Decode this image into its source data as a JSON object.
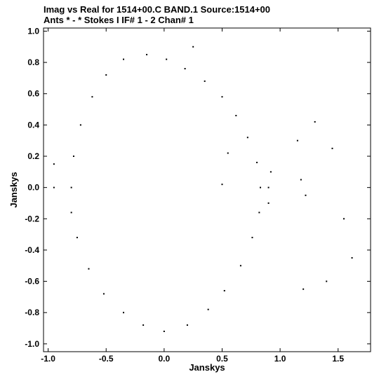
{
  "header": {
    "line1": "Imag vs Real for 1514+00.C BAND.1   Source:1514+00",
    "line2": "Ants * - *    Stokes I  IF# 1 - 2  Chan# 1"
  },
  "chart_data": {
    "type": "scatter",
    "title": "Imag vs Real for 1514+00.C BAND.1   Source:1514+00",
    "subtitle": "Ants * - *    Stokes I  IF# 1 - 2  Chan# 1",
    "xlabel": "Janskys",
    "ylabel": "Janskys",
    "xlim": [
      -1.04,
      1.78
    ],
    "ylim": [
      -1.05,
      1.02
    ],
    "x_ticks": [
      -1.0,
      -0.5,
      0.0,
      0.5,
      1.0,
      1.5
    ],
    "x_tick_labels": [
      "-1.0",
      "-0.5",
      "0.0",
      "0.5",
      "1.0",
      "1.5"
    ],
    "y_ticks": [
      -1.0,
      -0.8,
      -0.6,
      -0.4,
      -0.2,
      0.0,
      0.2,
      0.4,
      0.6,
      0.8,
      1.0
    ],
    "y_tick_labels": [
      "-1.0",
      "-0.8",
      "-0.6",
      "-0.4",
      "-0.2",
      "0.0",
      "0.2",
      "0.4",
      "0.6",
      "0.8",
      "1.0"
    ],
    "grid": false,
    "legend": false,
    "marker_color": "#000000",
    "series": [
      {
        "points": [
          [
            -0.8,
            0.0
          ],
          [
            -0.78,
            0.2
          ],
          [
            -0.72,
            0.4
          ],
          [
            -0.62,
            0.58
          ],
          [
            -0.5,
            0.72
          ],
          [
            -0.35,
            0.82
          ],
          [
            -0.15,
            0.85
          ],
          [
            0.02,
            0.82
          ],
          [
            0.18,
            0.76
          ],
          [
            0.35,
            0.68
          ],
          [
            0.5,
            0.58
          ],
          [
            0.62,
            0.46
          ],
          [
            0.72,
            0.32
          ],
          [
            0.8,
            0.16
          ],
          [
            0.83,
            0.0
          ],
          [
            0.82,
            -0.16
          ],
          [
            0.76,
            -0.32
          ],
          [
            0.66,
            -0.5
          ],
          [
            0.52,
            -0.66
          ],
          [
            0.38,
            -0.78
          ],
          [
            0.2,
            -0.88
          ],
          [
            0.0,
            -0.92
          ],
          [
            -0.18,
            -0.88
          ],
          [
            -0.35,
            -0.8
          ],
          [
            -0.52,
            -0.68
          ],
          [
            -0.65,
            -0.52
          ],
          [
            -0.75,
            -0.32
          ],
          [
            -0.8,
            -0.16
          ],
          [
            0.9,
            0.0
          ],
          [
            0.92,
            0.1
          ],
          [
            0.9,
            -0.1
          ],
          [
            1.15,
            0.3
          ],
          [
            1.18,
            0.05
          ],
          [
            1.22,
            -0.05
          ],
          [
            1.3,
            0.42
          ],
          [
            1.45,
            0.25
          ],
          [
            1.55,
            -0.2
          ],
          [
            1.62,
            -0.45
          ],
          [
            1.4,
            -0.6
          ],
          [
            1.2,
            -0.65
          ],
          [
            0.55,
            0.22
          ],
          [
            0.5,
            0.02
          ],
          [
            0.25,
            0.9
          ],
          [
            -0.95,
            0.15
          ],
          [
            -0.95,
            0.0
          ]
        ]
      }
    ]
  }
}
